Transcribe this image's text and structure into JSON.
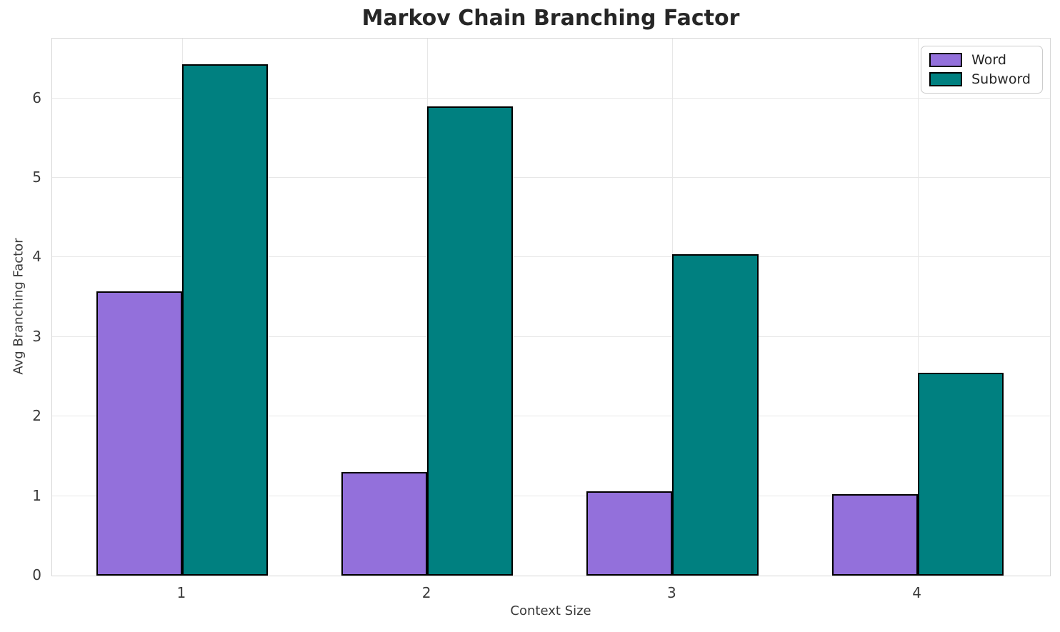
{
  "chart_data": {
    "type": "bar",
    "title": "Markov Chain Branching Factor",
    "xlabel": "Context Size",
    "ylabel": "Avg Branching Factor",
    "categories": [
      "1",
      "2",
      "3",
      "4"
    ],
    "series": [
      {
        "name": "Word",
        "color": "#9370DB",
        "values": [
          3.57,
          1.3,
          1.06,
          1.02
        ]
      },
      {
        "name": "Subword",
        "color": "#008080",
        "values": [
          6.43,
          5.9,
          4.04,
          2.55
        ]
      }
    ],
    "bar_width": 0.35,
    "bar_edge_color": "#000000",
    "xlim": [
      0.47,
      4.54
    ],
    "ylim": [
      0,
      6.75
    ],
    "yticks": [
      0,
      1,
      2,
      3,
      4,
      5,
      6
    ],
    "grid": true,
    "grid_color": "#e7e7e7",
    "spine_color": "#d6d6d6",
    "text_color": "#3a3a3a",
    "title_color": "#262626",
    "legend_position": "upper right"
  }
}
